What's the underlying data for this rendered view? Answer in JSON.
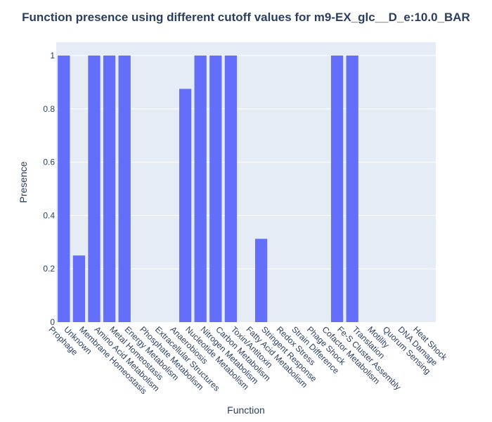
{
  "chart_data": {
    "type": "bar",
    "title": "Function presence using different cutoff values for m9-EX_glc__D_e:10.0_BAR",
    "xlabel": "Function",
    "ylabel": "Presence",
    "ylim": [
      0,
      1.05
    ],
    "yticks": [
      0,
      0.2,
      0.4,
      0.6,
      0.8,
      1
    ],
    "ytick_labels": [
      "0",
      "0.2",
      "0.4",
      "0.6",
      "0.8",
      "1"
    ],
    "grid": true,
    "categories": [
      "Prophage",
      "Unknown",
      "Membrane Homeostasis",
      "Amino Acid Metabolism",
      "Metal Homeostasis",
      "Energy Metabolism",
      "Phosphate Metabolism",
      "Extracellular Structures",
      "Anaerobiosis",
      "Nucleotide Metabolism",
      "Nitrogen Metabolism",
      "Carbon Metabolism",
      "Toxin/Antitoxin",
      "Fatty Acid Metabolism",
      "Stringent Response",
      "Redox Stress",
      "Strain Difference",
      "Phage Shock",
      "Cofactor Metabolism",
      "Fe-S Cluster Assembly",
      "Translation",
      "Motility",
      "Quorum Sensing",
      "DNA Damage",
      "Heat Shock"
    ],
    "values": [
      1,
      0.25,
      1,
      1,
      1,
      0,
      0,
      0,
      0.875,
      1,
      1,
      1,
      0,
      0.3125,
      0,
      0,
      0,
      0,
      1,
      1,
      0,
      0,
      0,
      0,
      0
    ],
    "colors": {
      "bar": "#636efa",
      "plot_bg": "#e5ecf6",
      "grid": "#ffffff",
      "text": "#2a3f5f"
    }
  }
}
